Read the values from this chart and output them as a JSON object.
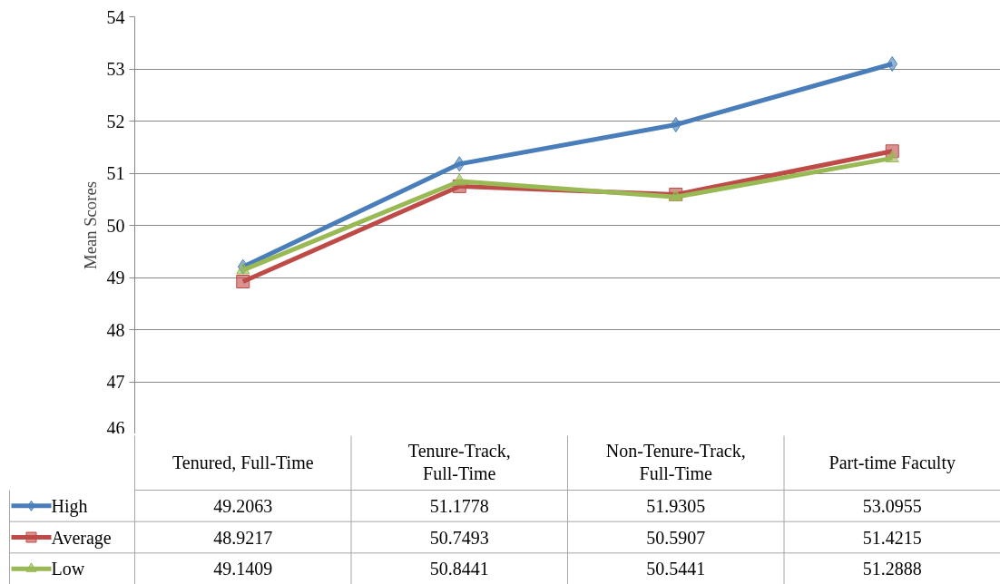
{
  "chart_data": {
    "type": "line",
    "ylabel": "Mean Scores",
    "categories": [
      "Tenured, Full-Time",
      "Tenure-Track, Full-Time",
      "Non-Tenure-Track, Full-Time",
      "Part-time Faculty"
    ],
    "series": [
      {
        "name": "High",
        "color": "#4a7ebb",
        "marker": "diamond",
        "values": [
          49.2063,
          51.1778,
          51.9305,
          53.0955
        ]
      },
      {
        "name": "Average",
        "color": "#be4b48",
        "marker": "square",
        "values": [
          48.9217,
          50.7493,
          50.5907,
          51.4215
        ]
      },
      {
        "name": "Low",
        "color": "#98b954",
        "marker": "triangle",
        "values": [
          49.1409,
          50.8441,
          50.5441,
          51.2888
        ]
      }
    ],
    "ylim": [
      46,
      54
    ],
    "yticks": [
      46,
      47,
      48,
      49,
      50,
      51,
      52,
      53,
      54
    ],
    "grid": "y",
    "data_labels": true,
    "legend": "bottom",
    "line_style": "solid"
  }
}
